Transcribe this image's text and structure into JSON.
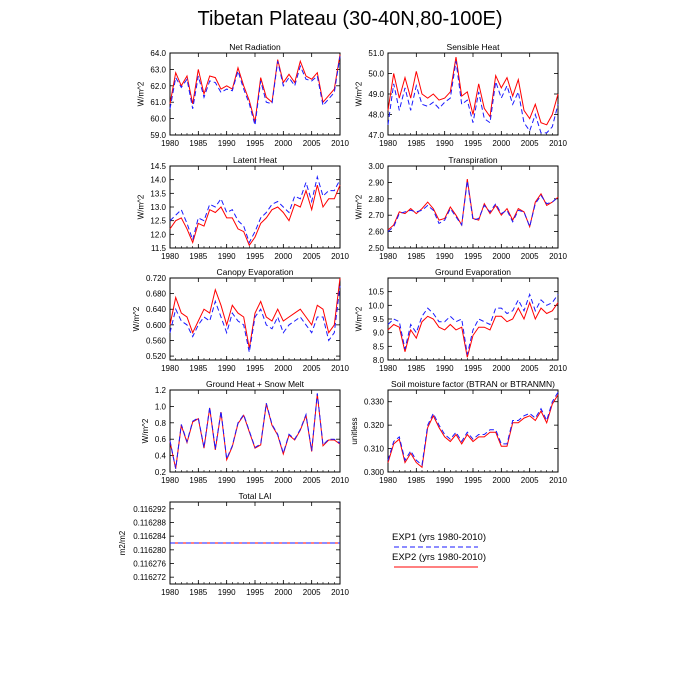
{
  "page": {
    "title": "Tibetan Plateau (30-40N,80-100E)",
    "series_colors": {
      "EXP1": "#1a1aff",
      "EXP2": "#ff0000"
    }
  },
  "legend": {
    "entries": [
      {
        "label": "EXP1 (yrs 1980-2010)",
        "color": "#1a1aff",
        "dash": "dashed"
      },
      {
        "label": "EXP2 (yrs 1980-2010)",
        "color": "#ff0000",
        "dash": "solid"
      }
    ]
  },
  "chart_data": [
    {
      "type": "line",
      "title": "Net Radiation",
      "xlabel": "",
      "ylabel": "W/m^2",
      "xlim": [
        1980,
        2010
      ],
      "ylim": [
        59.0,
        64.0
      ],
      "xticks": [
        "1980",
        "1985",
        "1990",
        "1995",
        "2000",
        "2005",
        "2010"
      ],
      "yticks": [
        "59.0",
        "60.0",
        "61.0",
        "62.0",
        "63.0",
        "64.0"
      ],
      "x": [
        1980,
        1981,
        1982,
        1983,
        1984,
        1985,
        1986,
        1987,
        1988,
        1989,
        1990,
        1991,
        1992,
        1993,
        1994,
        1995,
        1996,
        1997,
        1998,
        1999,
        2000,
        2001,
        2002,
        2003,
        2004,
        2005,
        2006,
        2007,
        2008,
        2009,
        2010
      ],
      "series": [
        {
          "name": "EXP1",
          "values": [
            60.6,
            62.5,
            61.9,
            62.4,
            60.6,
            62.6,
            61.3,
            62.3,
            62.2,
            61.6,
            61.8,
            61.7,
            62.9,
            61.8,
            60.9,
            59.6,
            62.3,
            61.0,
            60.9,
            63.5,
            62.0,
            62.5,
            62.0,
            63.2,
            62.4,
            62.3,
            62.6,
            60.8,
            61.2,
            61.6,
            63.8
          ]
        },
        {
          "name": "EXP2",
          "values": [
            60.9,
            62.8,
            62.0,
            62.6,
            60.9,
            63.0,
            61.5,
            62.6,
            62.5,
            61.8,
            62.0,
            61.8,
            63.1,
            62.0,
            61.1,
            59.8,
            62.5,
            61.3,
            61.0,
            63.6,
            62.2,
            62.7,
            62.2,
            63.5,
            62.6,
            62.4,
            62.8,
            61.0,
            61.4,
            61.8,
            63.9
          ]
        }
      ]
    },
    {
      "type": "line",
      "title": "Sensible Heat",
      "xlabel": "",
      "ylabel": "W/m^2",
      "xlim": [
        1980,
        2010
      ],
      "ylim": [
        47.0,
        51.0
      ],
      "xticks": [
        "1980",
        "1985",
        "1990",
        "1995",
        "2000",
        "2005",
        "2010"
      ],
      "yticks": [
        "47.0",
        "48.0",
        "49.0",
        "50.0",
        "51.0"
      ],
      "x": [
        1980,
        1981,
        1982,
        1983,
        1984,
        1985,
        1986,
        1987,
        1988,
        1989,
        1990,
        1991,
        1992,
        1993,
        1994,
        1995,
        1996,
        1997,
        1998,
        1999,
        2000,
        2001,
        2002,
        2003,
        2004,
        2005,
        2006,
        2007,
        2008,
        2009,
        2010
      ],
      "series": [
        {
          "name": "EXP1",
          "values": [
            47.5,
            49.5,
            48.2,
            49.3,
            48.2,
            49.4,
            48.5,
            48.4,
            48.6,
            48.3,
            48.6,
            48.8,
            50.6,
            48.5,
            48.7,
            47.6,
            49.1,
            47.8,
            47.6,
            49.6,
            48.8,
            49.4,
            48.5,
            49.1,
            47.6,
            47.2,
            48.0,
            47.1,
            47.1,
            47.4,
            48.5
          ]
        },
        {
          "name": "EXP2",
          "values": [
            48.2,
            50.0,
            48.8,
            49.8,
            48.8,
            50.1,
            49.0,
            48.8,
            49.0,
            48.7,
            48.8,
            49.1,
            50.8,
            48.9,
            49.1,
            48.0,
            49.5,
            48.3,
            47.9,
            49.9,
            49.3,
            49.8,
            48.9,
            49.7,
            48.2,
            47.8,
            48.5,
            47.6,
            47.5,
            48.0,
            49.0
          ]
        }
      ]
    },
    {
      "type": "line",
      "title": "Latent Heat",
      "xlabel": "",
      "ylabel": "W/m^2",
      "xlim": [
        1980,
        2010
      ],
      "ylim": [
        11.5,
        14.5
      ],
      "xticks": [
        "1980",
        "1985",
        "1990",
        "1995",
        "2000",
        "2005",
        "2010"
      ],
      "yticks": [
        "11.5",
        "12.0",
        "12.5",
        "13.0",
        "13.5",
        "14.0",
        "14.5"
      ],
      "x": [
        1980,
        1981,
        1982,
        1983,
        1984,
        1985,
        1986,
        1987,
        1988,
        1989,
        1990,
        1991,
        1992,
        1993,
        1994,
        1995,
        1996,
        1997,
        1998,
        1999,
        2000,
        2001,
        2002,
        2003,
        2004,
        2005,
        2006,
        2007,
        2008,
        2009,
        2010
      ],
      "series": [
        {
          "name": "EXP1",
          "values": [
            12.5,
            12.7,
            12.9,
            12.4,
            11.8,
            12.6,
            12.5,
            13.1,
            13.0,
            13.3,
            12.8,
            12.9,
            12.5,
            12.3,
            11.7,
            12.1,
            12.6,
            12.8,
            13.1,
            13.2,
            13.0,
            12.8,
            13.4,
            13.3,
            13.9,
            13.2,
            14.1,
            13.4,
            13.6,
            13.6,
            14.0
          ]
        },
        {
          "name": "EXP2",
          "values": [
            12.2,
            12.5,
            12.6,
            12.2,
            11.7,
            12.4,
            12.3,
            12.9,
            12.8,
            13.0,
            12.6,
            12.6,
            12.2,
            12.1,
            11.6,
            11.9,
            12.4,
            12.6,
            12.9,
            13.0,
            12.8,
            12.5,
            13.1,
            13.0,
            13.6,
            12.9,
            13.8,
            13.0,
            13.3,
            13.3,
            13.8
          ]
        }
      ]
    },
    {
      "type": "line",
      "title": "Transpiration",
      "xlabel": "",
      "ylabel": "W/m^2",
      "xlim": [
        1980,
        2010
      ],
      "ylim": [
        2.5,
        3.0
      ],
      "xticks": [
        "1980",
        "1985",
        "1990",
        "1995",
        "2000",
        "2005",
        "2010"
      ],
      "yticks": [
        "2.50",
        "2.60",
        "2.70",
        "2.80",
        "2.90",
        "3.00"
      ],
      "x": [
        1980,
        1981,
        1982,
        1983,
        1984,
        1985,
        1986,
        1987,
        1988,
        1989,
        1990,
        1991,
        1992,
        1993,
        1994,
        1995,
        1996,
        1997,
        1998,
        1999,
        2000,
        2001,
        2002,
        2003,
        2004,
        2005,
        2006,
        2007,
        2008,
        2009,
        2010
      ],
      "series": [
        {
          "name": "EXP1",
          "values": [
            2.6,
            2.63,
            2.71,
            2.72,
            2.73,
            2.72,
            2.73,
            2.76,
            2.73,
            2.65,
            2.67,
            2.74,
            2.69,
            2.64,
            2.91,
            2.67,
            2.68,
            2.76,
            2.72,
            2.77,
            2.71,
            2.73,
            2.66,
            2.73,
            2.72,
            2.63,
            2.77,
            2.82,
            2.77,
            2.78,
            2.81
          ]
        },
        {
          "name": "EXP2",
          "values": [
            2.61,
            2.64,
            2.72,
            2.71,
            2.74,
            2.71,
            2.74,
            2.78,
            2.74,
            2.67,
            2.68,
            2.75,
            2.7,
            2.64,
            2.92,
            2.68,
            2.67,
            2.77,
            2.71,
            2.76,
            2.7,
            2.74,
            2.67,
            2.74,
            2.72,
            2.63,
            2.78,
            2.83,
            2.76,
            2.78,
            2.81
          ]
        }
      ]
    },
    {
      "type": "line",
      "title": "Canopy Evaporation",
      "xlabel": "",
      "ylabel": "W/m^2",
      "xlim": [
        1980,
        2010
      ],
      "ylim": [
        0.51,
        0.72
      ],
      "xticks": [
        "1980",
        "1985",
        "1990",
        "1995",
        "2000",
        "2005",
        "2010"
      ],
      "yticks": [
        "0.520",
        "0.560",
        "0.600",
        "0.640",
        "0.680",
        "0.720"
      ],
      "x": [
        1980,
        1981,
        1982,
        1983,
        1984,
        1985,
        1986,
        1987,
        1988,
        1989,
        1990,
        1991,
        1992,
        1993,
        1994,
        1995,
        1996,
        1997,
        1998,
        1999,
        2000,
        2001,
        2002,
        2003,
        2004,
        2005,
        2006,
        2007,
        2008,
        2009,
        2010
      ],
      "series": [
        {
          "name": "EXP1",
          "values": [
            0.58,
            0.64,
            0.61,
            0.6,
            0.57,
            0.6,
            0.62,
            0.61,
            0.66,
            0.62,
            0.58,
            0.63,
            0.61,
            0.6,
            0.53,
            0.62,
            0.64,
            0.6,
            0.59,
            0.62,
            0.58,
            0.6,
            0.61,
            0.62,
            0.6,
            0.58,
            0.62,
            0.62,
            0.56,
            0.58,
            0.7
          ]
        },
        {
          "name": "EXP2",
          "values": [
            0.6,
            0.67,
            0.63,
            0.62,
            0.58,
            0.61,
            0.64,
            0.63,
            0.69,
            0.65,
            0.6,
            0.65,
            0.63,
            0.62,
            0.54,
            0.63,
            0.66,
            0.62,
            0.61,
            0.64,
            0.61,
            0.62,
            0.63,
            0.64,
            0.62,
            0.6,
            0.65,
            0.64,
            0.58,
            0.6,
            0.72
          ]
        }
      ]
    },
    {
      "type": "line",
      "title": "Ground Evaporation",
      "xlabel": "",
      "ylabel": "W/m^2",
      "xlim": [
        1980,
        2010
      ],
      "ylim": [
        8.0,
        11.0
      ],
      "xticks": [
        "1980",
        "1985",
        "1990",
        "1995",
        "2000",
        "2005",
        "2010"
      ],
      "yticks": [
        "8.0",
        "8.5",
        "9.0",
        "9.5",
        "10.0",
        "10.5"
      ],
      "x": [
        1980,
        1981,
        1982,
        1983,
        1984,
        1985,
        1986,
        1987,
        1988,
        1989,
        1990,
        1991,
        1992,
        1993,
        1994,
        1995,
        1996,
        1997,
        1998,
        1999,
        2000,
        2001,
        2002,
        2003,
        2004,
        2005,
        2006,
        2007,
        2008,
        2009,
        2010
      ],
      "series": [
        {
          "name": "EXP1",
          "values": [
            9.3,
            9.5,
            9.4,
            8.4,
            9.3,
            9.0,
            9.6,
            9.9,
            9.7,
            9.4,
            9.4,
            9.6,
            9.4,
            9.5,
            8.2,
            9.1,
            9.5,
            9.4,
            9.3,
            9.9,
            9.9,
            9.7,
            9.8,
            10.2,
            9.8,
            10.4,
            9.8,
            10.2,
            10.0,
            10.1,
            10.4
          ]
        },
        {
          "name": "EXP2",
          "values": [
            9.1,
            9.3,
            9.2,
            8.3,
            9.1,
            8.8,
            9.4,
            9.6,
            9.5,
            9.2,
            9.1,
            9.3,
            9.1,
            9.2,
            8.1,
            8.9,
            9.2,
            9.2,
            9.1,
            9.6,
            9.6,
            9.4,
            9.5,
            9.9,
            9.5,
            10.1,
            9.5,
            9.9,
            9.7,
            9.8,
            10.1
          ]
        }
      ]
    },
    {
      "type": "line",
      "title": "Ground Heat + Snow Melt",
      "xlabel": "",
      "ylabel": "W/m^2",
      "xlim": [
        1980,
        2010
      ],
      "ylim": [
        0.2,
        1.2
      ],
      "xticks": [
        "1980",
        "1985",
        "1990",
        "1995",
        "2000",
        "2005",
        "2010"
      ],
      "yticks": [
        "0.2",
        "0.4",
        "0.6",
        "0.8",
        "1.0",
        "1.2"
      ],
      "x": [
        1980,
        1981,
        1982,
        1983,
        1984,
        1985,
        1986,
        1987,
        1988,
        1989,
        1990,
        1991,
        1992,
        1993,
        1994,
        1995,
        1996,
        1997,
        1998,
        1999,
        2000,
        2001,
        2002,
        2003,
        2004,
        2005,
        2006,
        2007,
        2008,
        2009,
        2010
      ],
      "series": [
        {
          "name": "EXP1",
          "values": [
            0.58,
            0.24,
            0.78,
            0.57,
            0.82,
            0.86,
            0.5,
            0.99,
            0.48,
            0.94,
            0.36,
            0.52,
            0.8,
            0.9,
            0.7,
            0.5,
            0.54,
            1.04,
            0.78,
            0.66,
            0.43,
            0.66,
            0.6,
            0.72,
            0.9,
            0.46,
            1.16,
            0.53,
            0.6,
            0.6,
            0.55
          ]
        },
        {
          "name": "EXP2",
          "values": [
            0.57,
            0.24,
            0.77,
            0.56,
            0.81,
            0.85,
            0.49,
            0.98,
            0.47,
            0.93,
            0.35,
            0.51,
            0.79,
            0.89,
            0.69,
            0.49,
            0.53,
            1.03,
            0.77,
            0.65,
            0.42,
            0.65,
            0.59,
            0.71,
            0.89,
            0.45,
            1.15,
            0.52,
            0.59,
            0.59,
            0.54
          ]
        }
      ]
    },
    {
      "type": "line",
      "title": "Soil moisture factor (BTRAN or BTRANMN)",
      "xlabel": "",
      "ylabel": "unitless",
      "xlim": [
        1980,
        2010
      ],
      "ylim": [
        0.3,
        0.335
      ],
      "xticks": [
        "1980",
        "1985",
        "1990",
        "1995",
        "2000",
        "2005",
        "2010"
      ],
      "yticks": [
        "0.300",
        "0.310",
        "0.320",
        "0.330"
      ],
      "x": [
        1980,
        1981,
        1982,
        1983,
        1984,
        1985,
        1986,
        1987,
        1988,
        1989,
        1990,
        1991,
        1992,
        1993,
        1994,
        1995,
        1996,
        1997,
        1998,
        1999,
        2000,
        2001,
        2002,
        2003,
        2004,
        2005,
        2006,
        2007,
        2008,
        2009,
        2010
      ],
      "series": [
        {
          "name": "EXP1",
          "values": [
            0.305,
            0.313,
            0.315,
            0.305,
            0.309,
            0.305,
            0.303,
            0.32,
            0.325,
            0.32,
            0.316,
            0.314,
            0.317,
            0.313,
            0.317,
            0.314,
            0.316,
            0.316,
            0.318,
            0.318,
            0.312,
            0.312,
            0.322,
            0.322,
            0.324,
            0.325,
            0.323,
            0.327,
            0.322,
            0.33,
            0.334
          ]
        },
        {
          "name": "EXP2",
          "values": [
            0.304,
            0.312,
            0.314,
            0.304,
            0.308,
            0.304,
            0.302,
            0.319,
            0.324,
            0.319,
            0.315,
            0.313,
            0.316,
            0.312,
            0.316,
            0.313,
            0.315,
            0.315,
            0.317,
            0.317,
            0.311,
            0.311,
            0.321,
            0.321,
            0.323,
            0.324,
            0.322,
            0.326,
            0.321,
            0.329,
            0.333
          ]
        }
      ]
    },
    {
      "type": "line",
      "title": "Total LAI",
      "xlabel": "",
      "ylabel": "m2/m2",
      "xlim": [
        1980,
        2010
      ],
      "ylim": [
        0.11627,
        0.116294
      ],
      "xticks": [
        "1980",
        "1985",
        "1990",
        "1995",
        "2000",
        "2005",
        "2010"
      ],
      "yticks": [
        "0.116272",
        "0.116276",
        "0.116280",
        "0.116284",
        "0.116288",
        "0.116292"
      ],
      "x": [
        1980,
        2010
      ],
      "series": [
        {
          "name": "EXP1",
          "values": [
            0.116282,
            0.116282
          ]
        },
        {
          "name": "EXP2",
          "values": [
            0.116282,
            0.116282
          ]
        }
      ]
    }
  ]
}
